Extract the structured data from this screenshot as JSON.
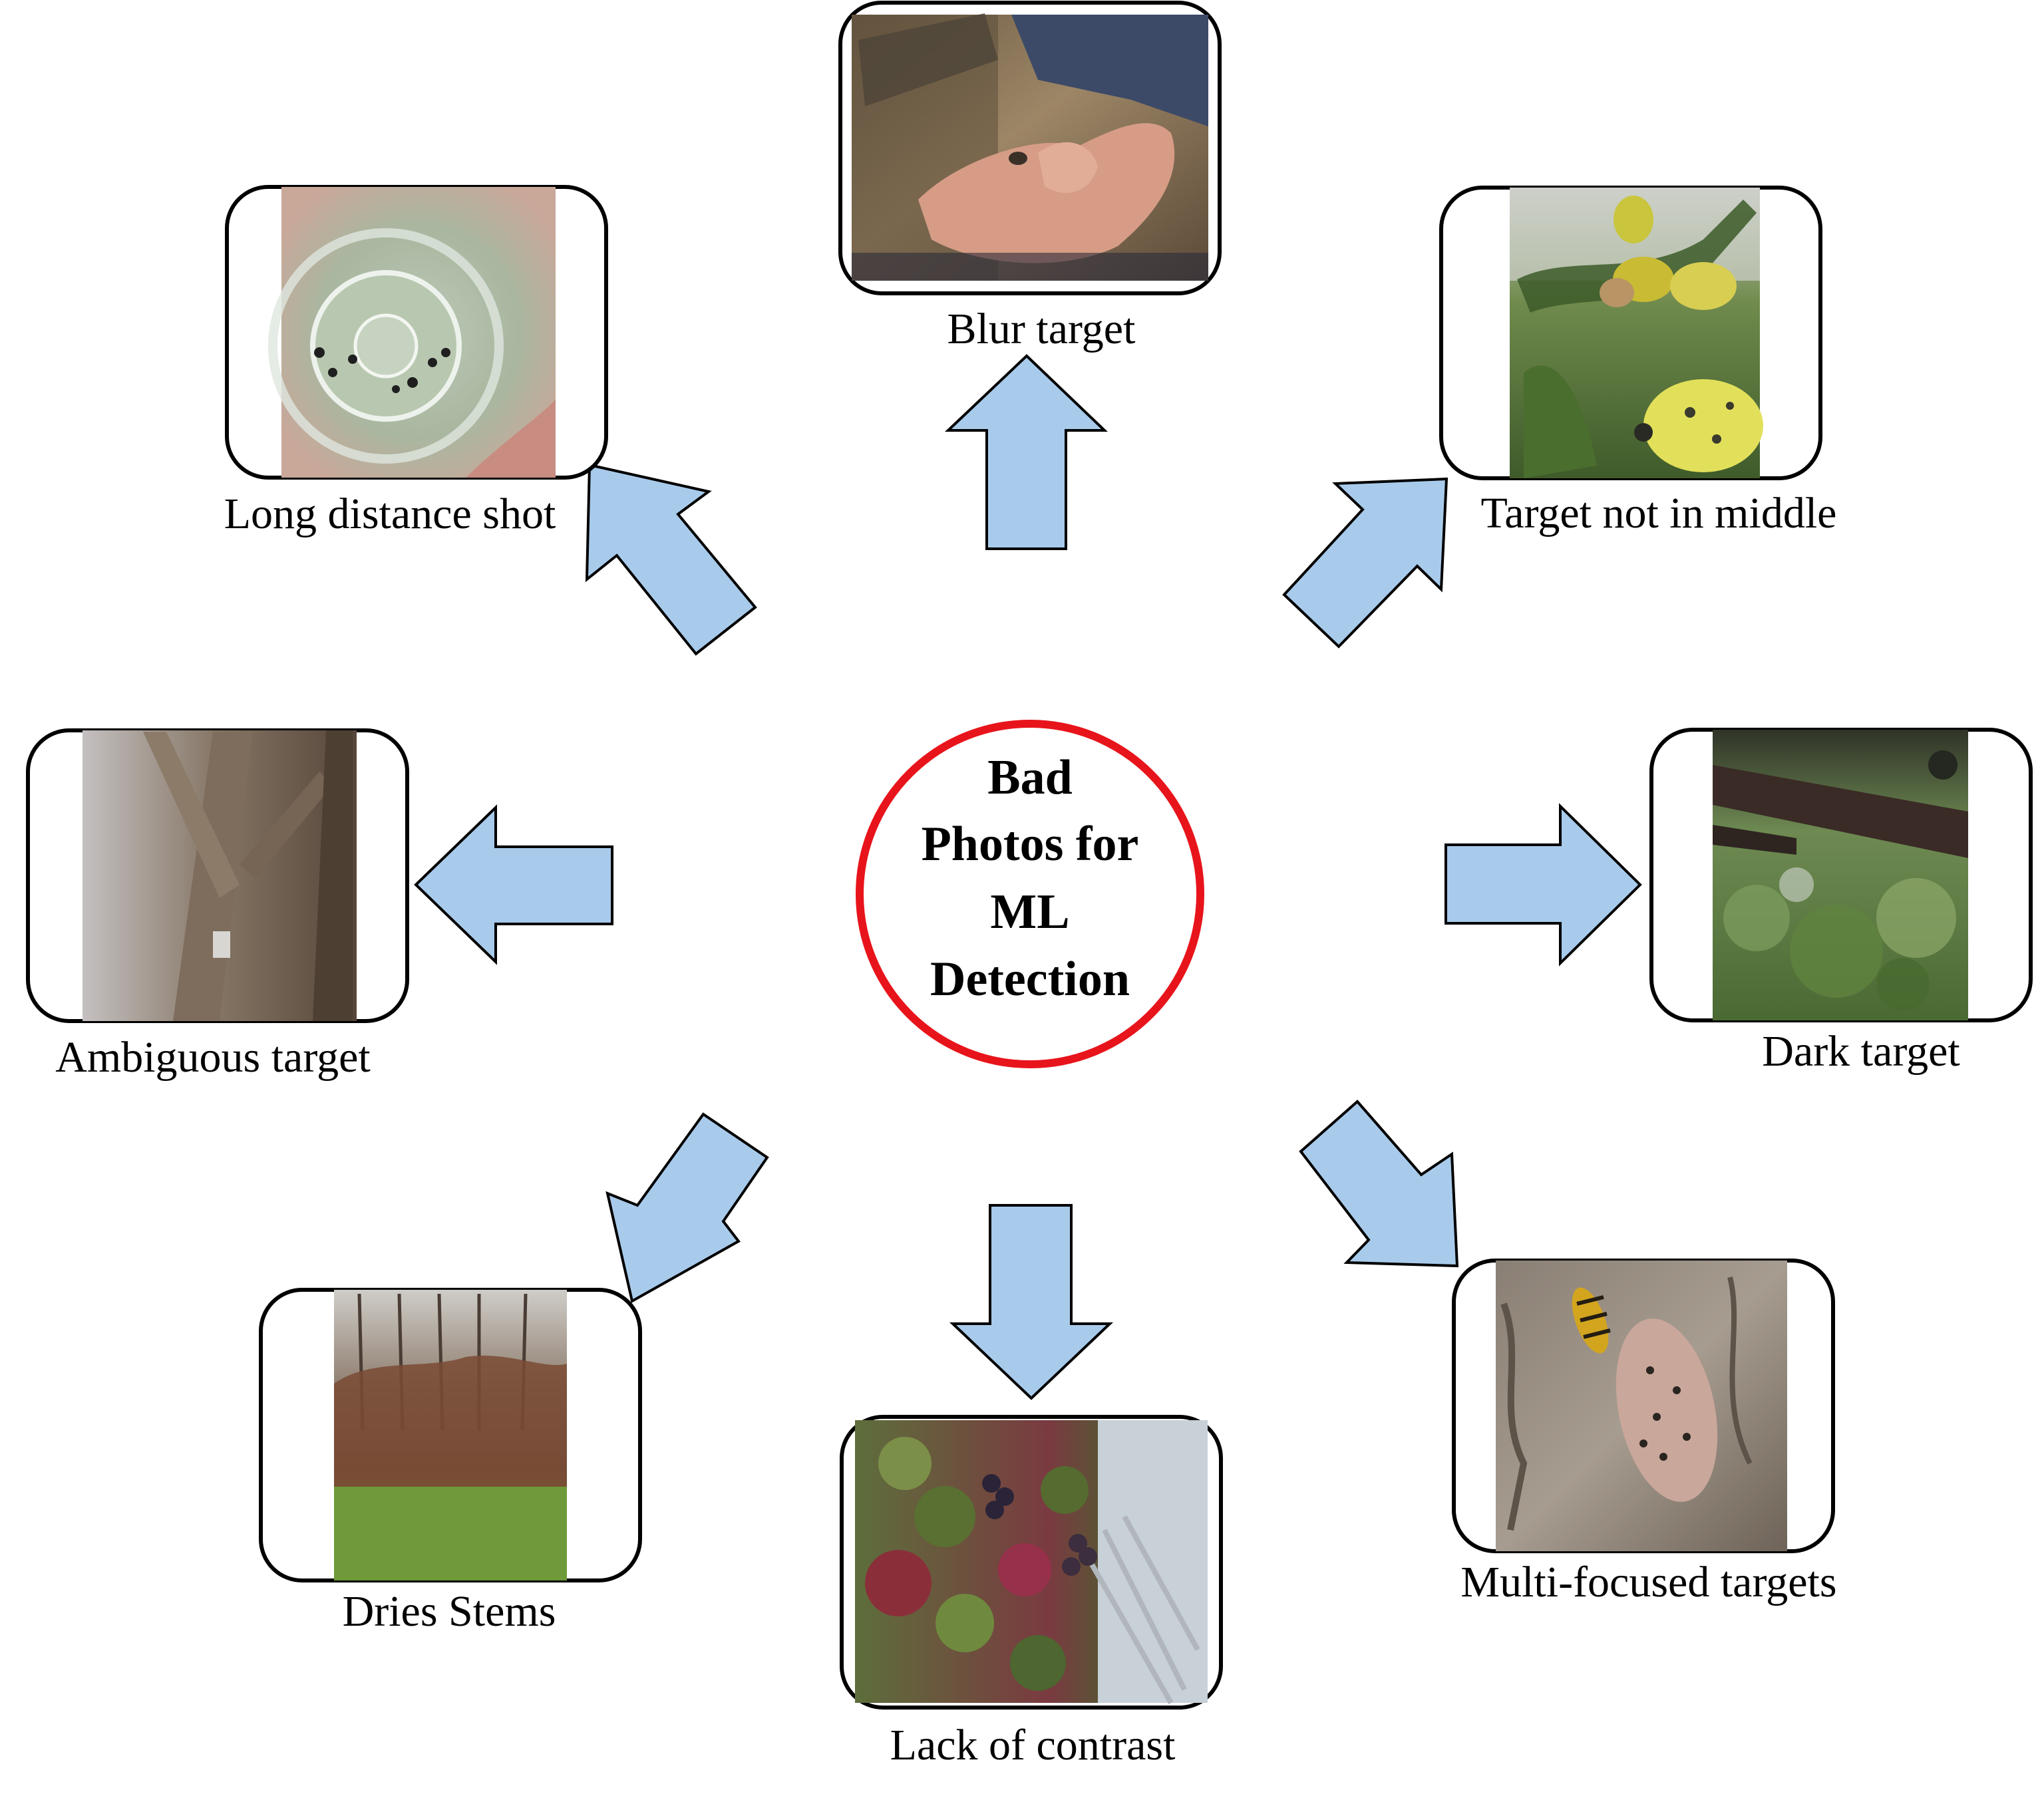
{
  "center": {
    "lines": [
      "Bad",
      "Photos for",
      "ML",
      "Detection"
    ],
    "ring_color": "#e8141b"
  },
  "arrow_color": "#a9cbeb",
  "cards": [
    {
      "id": "blur",
      "caption": "Blur target",
      "photo": "hands-holding-insect-photo"
    },
    {
      "id": "not-middle",
      "caption": "Target not in middle",
      "photo": "spotted-leaves-photo"
    },
    {
      "id": "dark",
      "caption": "Dark target",
      "photo": "tree-canopy-photo"
    },
    {
      "id": "multi",
      "caption": "Multi-focused targets",
      "photo": "insects-on-bark-photo"
    },
    {
      "id": "contrast",
      "caption": "Lack of contrast",
      "photo": "vines-and-berries-photo"
    },
    {
      "id": "dries",
      "caption": "Dries Stems",
      "photo": "dry-shrubs-field-photo"
    },
    {
      "id": "ambiguous",
      "caption": "Ambiguous target",
      "photo": "tree-branches-photo"
    },
    {
      "id": "long",
      "caption": "Long distance shot",
      "photo": "jar-with-insects-photo"
    }
  ]
}
